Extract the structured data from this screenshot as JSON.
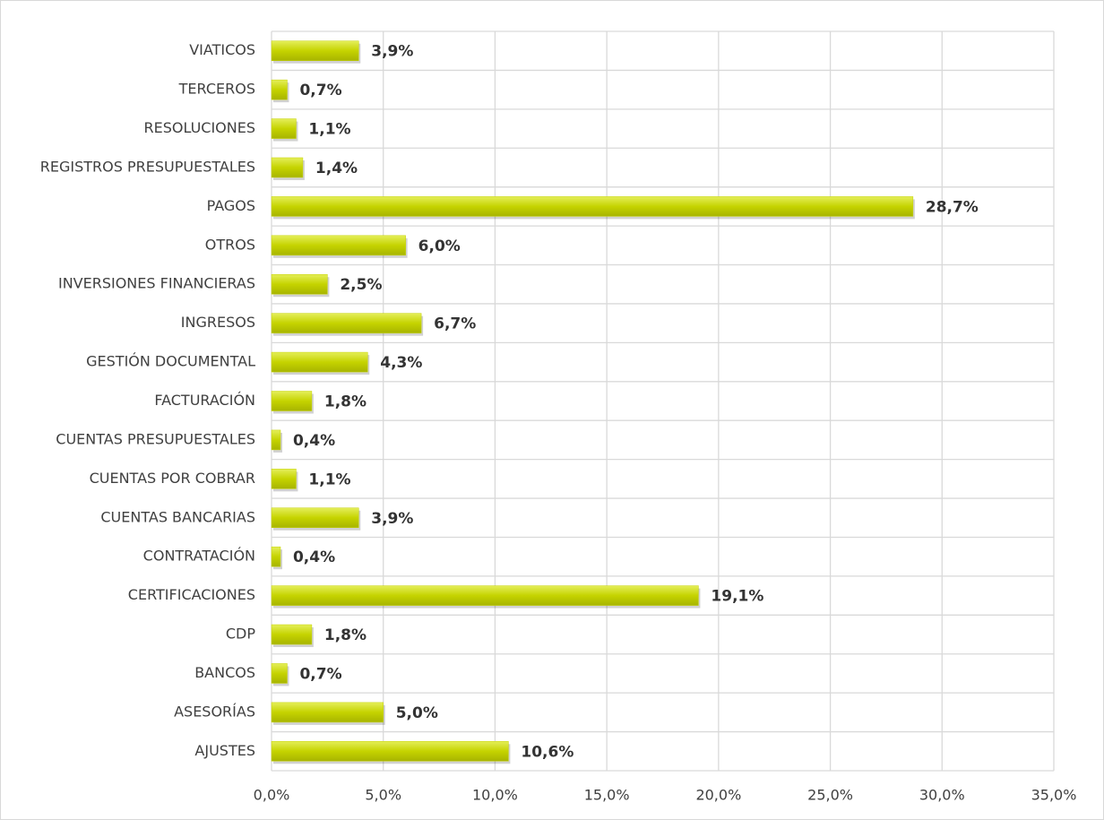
{
  "chart_data": {
    "type": "barh",
    "categories": [
      "VIATICOS",
      "TERCEROS",
      "RESOLUCIONES",
      "REGISTROS PRESUPUESTALES",
      "PAGOS",
      "OTROS",
      "INVERSIONES FINANCIERAS",
      "INGRESOS",
      "GESTIÓN DOCUMENTAL",
      "FACTURACIÓN",
      "CUENTAS PRESUPUESTALES",
      "CUENTAS POR COBRAR",
      "CUENTAS BANCARIAS",
      "CONTRATACIÓN",
      "CERTIFICACIONES",
      "CDP",
      "BANCOS",
      "ASESORÍAS",
      "AJUSTES"
    ],
    "values": [
      3.9,
      0.7,
      1.1,
      1.4,
      28.7,
      6.0,
      2.5,
      6.7,
      4.3,
      1.8,
      0.4,
      1.1,
      3.9,
      0.4,
      19.1,
      1.8,
      0.7,
      5.0,
      10.6
    ],
    "value_labels": [
      "3,9%",
      "0,7%",
      "1,1%",
      "1,4%",
      "28,7%",
      "6,0%",
      "2,5%",
      "6,7%",
      "4,3%",
      "1,8%",
      "0,4%",
      "1,1%",
      "3,9%",
      "0,4%",
      "19,1%",
      "1,8%",
      "0,7%",
      "5,0%",
      "10,6%"
    ],
    "color": "#c5d300",
    "xlim": [
      0,
      35
    ],
    "xticks": [
      {
        "value": 0,
        "label": "0,0%"
      },
      {
        "value": 5,
        "label": "5,0%"
      },
      {
        "value": 10,
        "label": "10,0%"
      },
      {
        "value": 15,
        "label": "15,0%"
      },
      {
        "value": 20,
        "label": "20,0%"
      },
      {
        "value": 25,
        "label": "25,0%"
      },
      {
        "value": 30,
        "label": "30,0%"
      },
      {
        "value": 35,
        "label": "35,0%"
      }
    ],
    "grid": true
  }
}
